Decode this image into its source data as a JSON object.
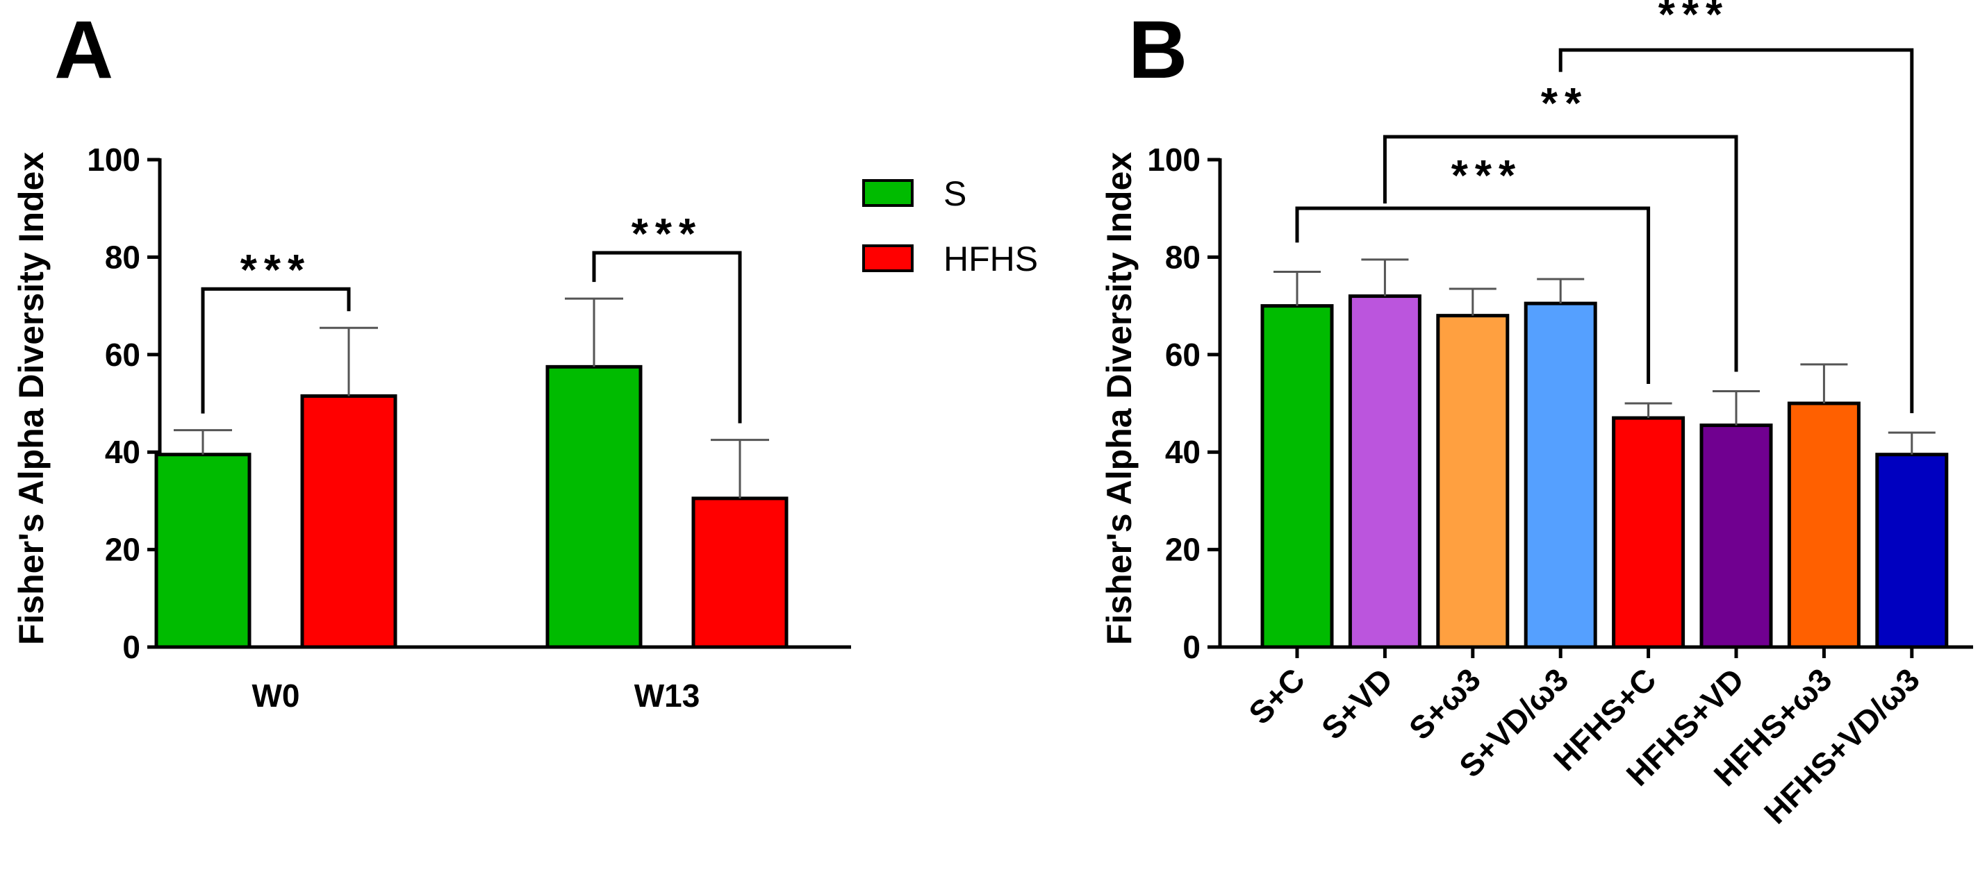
{
  "chart_data": [
    {
      "type": "bar",
      "panel": "A",
      "ylabel": "Fisher's Alpha Diversity Index",
      "ylim": [
        0,
        100
      ],
      "yticks": [
        0,
        20,
        40,
        60,
        80,
        100
      ],
      "categories": [
        "W0",
        "W13"
      ],
      "series": [
        {
          "name": "S",
          "color": "#00bb00",
          "values": [
            39.5,
            57.5
          ],
          "errors": [
            5,
            14
          ]
        },
        {
          "name": "HFHS",
          "color": "#ff0000",
          "values": [
            51.5,
            30.5
          ],
          "errors": [
            14,
            12
          ]
        }
      ],
      "legend": {
        "position": "top-right",
        "entries": [
          "S",
          "HFHS"
        ]
      },
      "significance": [
        {
          "category": "W0",
          "label": "***"
        },
        {
          "category": "W13",
          "label": "***"
        }
      ]
    },
    {
      "type": "bar",
      "panel": "B",
      "ylabel": "Fisher's Alpha Diversity Index",
      "ylim": [
        0,
        100
      ],
      "yticks": [
        0,
        20,
        40,
        60,
        80,
        100
      ],
      "categories": [
        "S+C",
        "S+VD",
        "S+ω3",
        "S+VD/ω3",
        "HFHS+C",
        "HFHS+VD",
        "HFHS+ω3",
        "HFHS+VD/ω3"
      ],
      "values": [
        70,
        72,
        68,
        70.5,
        47,
        45.5,
        50,
        39.5
      ],
      "errors": [
        7,
        7.5,
        5.5,
        5,
        3,
        7,
        8,
        4.5
      ],
      "colors": [
        "#00bb00",
        "#bb55dd",
        "#ffa040",
        "#55a0ff",
        "#ff0000",
        "#700090",
        "#ff6000",
        "#0000c0"
      ],
      "significance": [
        {
          "from": "S+C",
          "to": "HFHS+C",
          "label": "***"
        },
        {
          "from": "S+VD",
          "to": "HFHS+VD",
          "label": "**"
        },
        {
          "from": "S+VD/ω3",
          "to": "HFHS+VD/ω3",
          "label": "***"
        }
      ]
    }
  ]
}
